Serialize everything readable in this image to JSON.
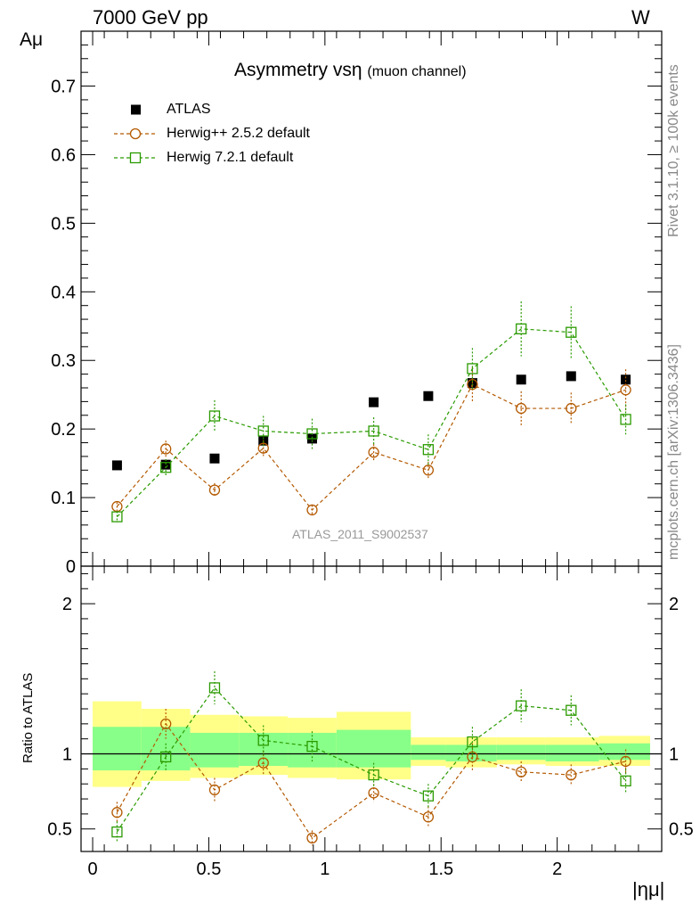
{
  "header": {
    "left": "7000 GeV pp",
    "right": "W"
  },
  "side_labels": {
    "rivet": "Rivet 3.1.10, ≥ 100k events",
    "mcplots": "mcplots.cern.ch [arXiv:1306.3436]"
  },
  "colors": {
    "atlas": "#000000",
    "herwig252": "#b35900",
    "herwig721": "#2a9a00",
    "band_outer": "#ffff88",
    "band_inner": "#88ff88"
  },
  "chart_data": [
    {
      "type": "scatter",
      "title": "Asymmetry vsη",
      "subtitle": "(muon channel)",
      "ylabel": "Aμ",
      "ylim": [
        0,
        0.78
      ],
      "yticks": [
        0,
        0.1,
        0.2,
        0.3,
        0.4,
        0.5,
        0.6,
        0.7
      ],
      "ytick_labels": [
        "0",
        "0.1",
        "0.2",
        "0.3",
        "0.4",
        "0.5",
        "0.6",
        "0.7"
      ],
      "xlim": [
        -0.05,
        2.45
      ],
      "watermark": "ATLAS_2011_S9002537",
      "legend_position": "top-left",
      "series": [
        {
          "name": "ATLAS",
          "marker": "filled-square",
          "x": [
            0.105,
            0.315,
            0.525,
            0.735,
            0.945,
            1.21,
            1.445,
            1.635,
            1.845,
            2.06,
            2.295
          ],
          "y": [
            0.147,
            0.148,
            0.157,
            0.183,
            0.186,
            0.239,
            0.248,
            0.267,
            0.272,
            0.277,
            0.272
          ]
        },
        {
          "name": "Herwig++ 2.5.2 default",
          "marker": "open-circle",
          "x": [
            0.105,
            0.315,
            0.525,
            0.735,
            0.945,
            1.21,
            1.445,
            1.635,
            1.845,
            2.06,
            2.295
          ],
          "y": [
            0.087,
            0.171,
            0.111,
            0.172,
            0.082,
            0.166,
            0.14,
            0.265,
            0.23,
            0.23,
            0.257
          ],
          "err": [
            0.006,
            0.012,
            0.01,
            0.012,
            0.007,
            0.012,
            0.012,
            0.025,
            0.025,
            0.023,
            0.03
          ]
        },
        {
          "name": "Herwig 7.2.1 default",
          "marker": "open-square",
          "x": [
            0.105,
            0.315,
            0.525,
            0.735,
            0.945,
            1.21,
            1.445,
            1.635,
            1.845,
            2.06,
            2.295
          ],
          "y": [
            0.072,
            0.144,
            0.219,
            0.197,
            0.193,
            0.197,
            0.17,
            0.288,
            0.346,
            0.341,
            0.214
          ],
          "err": [
            0.008,
            0.012,
            0.023,
            0.022,
            0.022,
            0.02,
            0.022,
            0.03,
            0.04,
            0.038,
            0.022
          ]
        }
      ]
    },
    {
      "type": "scatter",
      "ylabel": "Ratio to ATLAS",
      "xlabel": "|ημ|",
      "ylim": [
        0.35,
        2.25
      ],
      "yticks": [
        0.5,
        1,
        2
      ],
      "ytick_labels": [
        "0.5",
        "1",
        "2"
      ],
      "xlim": [
        -0.05,
        2.45
      ],
      "xticks": [
        0,
        0.5,
        1,
        1.5,
        2
      ],
      "xtick_labels": [
        "0",
        "0.5",
        "1",
        "1.5",
        "2"
      ],
      "reference_line": 1,
      "bands": {
        "edges": [
          0,
          0.21,
          0.42,
          0.63,
          0.84,
          1.05,
          1.37,
          1.52,
          1.74,
          1.95,
          2.18,
          2.4
        ],
        "inner_low": [
          0.89,
          0.89,
          0.91,
          0.92,
          0.91,
          0.91,
          0.96,
          0.95,
          0.96,
          0.95,
          0.96
        ],
        "inner_high": [
          1.18,
          1.18,
          1.14,
          1.14,
          1.14,
          1.16,
          1.06,
          1.06,
          1.06,
          1.06,
          1.07
        ],
        "outer_low": [
          0.78,
          0.82,
          0.84,
          0.86,
          0.84,
          0.83,
          0.92,
          0.91,
          0.93,
          0.92,
          0.92
        ],
        "outer_high": [
          1.35,
          1.3,
          1.26,
          1.25,
          1.24,
          1.28,
          1.11,
          1.11,
          1.11,
          1.11,
          1.12
        ]
      },
      "series": [
        {
          "name": "Herwig++ 2.5.2 default",
          "marker": "open-circle",
          "x": [
            0.105,
            0.315,
            0.525,
            0.735,
            0.945,
            1.21,
            1.445,
            1.635,
            1.845,
            2.06,
            2.295
          ],
          "y": [
            0.61,
            1.2,
            0.76,
            0.94,
            0.44,
            0.74,
            0.58,
            0.98,
            0.88,
            0.86,
            0.95
          ],
          "err": [
            0.07,
            0.1,
            0.08,
            0.08,
            0.05,
            0.06,
            0.07,
            0.09,
            0.07,
            0.07,
            0.08
          ]
        },
        {
          "name": "Herwig 7.2.1 default",
          "marker": "open-square",
          "x": [
            0.105,
            0.315,
            0.525,
            0.735,
            0.945,
            1.21,
            1.445,
            1.635,
            1.845,
            2.06,
            2.295
          ],
          "y": [
            0.48,
            0.98,
            1.44,
            1.09,
            1.05,
            0.86,
            0.72,
            1.08,
            1.32,
            1.29,
            0.82
          ],
          "err": [
            0.07,
            0.09,
            0.11,
            0.1,
            0.1,
            0.08,
            0.08,
            0.1,
            0.11,
            0.1,
            0.08
          ]
        }
      ]
    }
  ]
}
